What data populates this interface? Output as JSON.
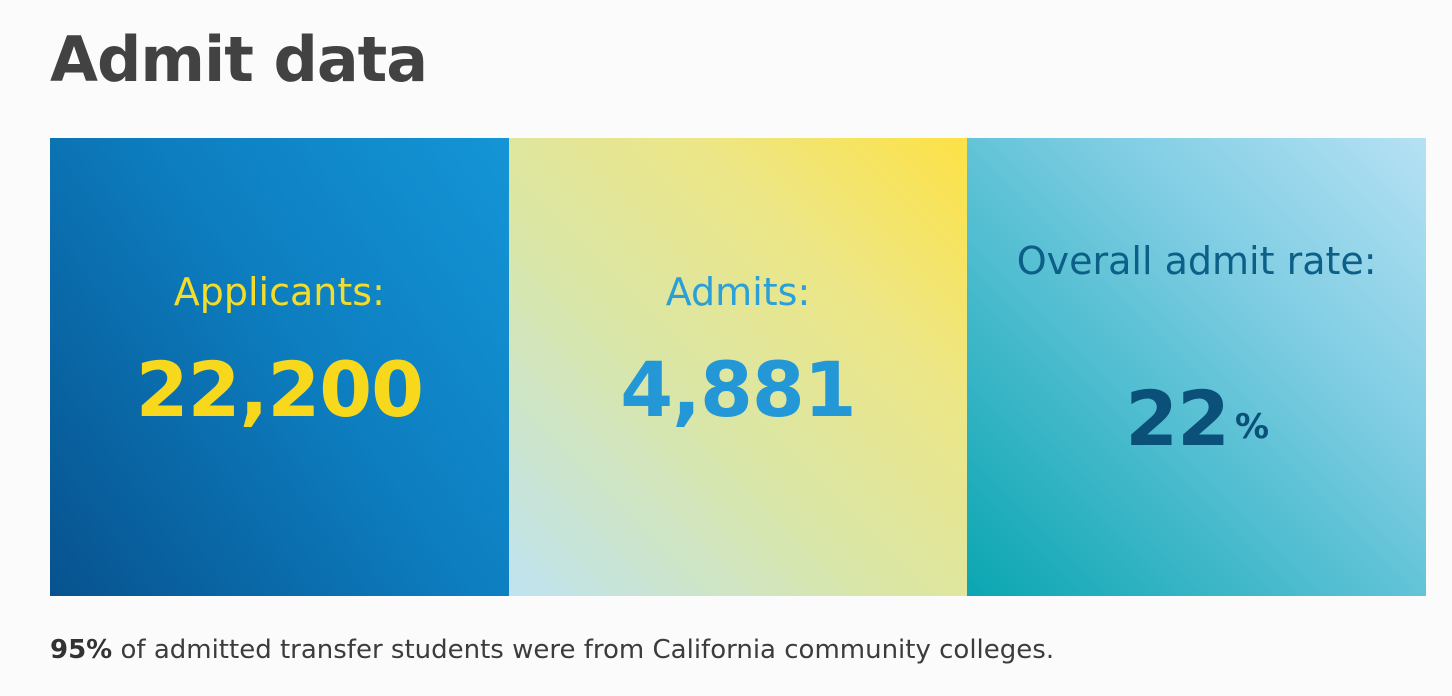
{
  "page": {
    "title": "Admit data"
  },
  "stats": {
    "applicants": {
      "label": "Applicants:",
      "value": "22,200"
    },
    "admits": {
      "label": "Admits:",
      "value": "4,881"
    },
    "admit_rate": {
      "label": "Overall admit rate:",
      "value": "22",
      "unit": "%"
    }
  },
  "footnote": {
    "highlight": "95%",
    "text": " of admitted transfer students were from California community colleges."
  },
  "colors": {
    "applicants_tile": "#0d7ec0",
    "admits_tile": "#ece687",
    "rate_tile": "#3fb7c9",
    "yellow_text": "#f8d81c",
    "blue_text": "#2497d6",
    "dark_teal_text": "#0a5079"
  }
}
